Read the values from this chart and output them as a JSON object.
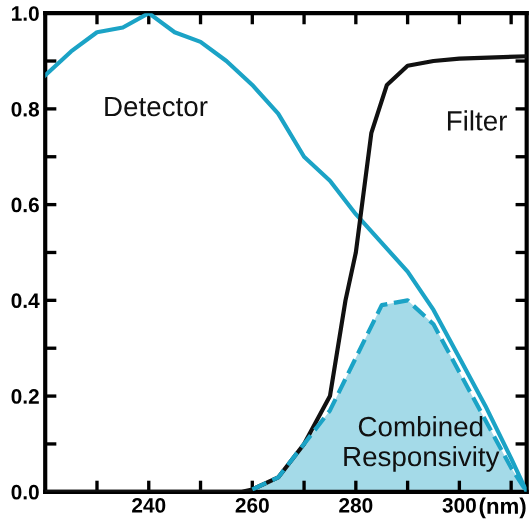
{
  "chart_data": {
    "type": "line",
    "xlabel": "(nm)",
    "xlim": [
      220,
      313
    ],
    "ylim": [
      0,
      1.0
    ],
    "xticks": [
      {
        "value": 230,
        "label": null
      },
      240,
      {
        "value": 250,
        "label": null
      },
      260,
      {
        "value": 270,
        "label": null
      },
      280,
      {
        "value": 290,
        "label": null
      },
      300,
      {
        "value": 310,
        "label": null
      }
    ],
    "yticks": [
      {
        "value": 0,
        "label": "0.0"
      },
      {
        "value": 0.1,
        "label": null
      },
      0.2,
      {
        "value": 0.3,
        "label": null
      },
      0.4,
      {
        "value": 0.5,
        "label": null
      },
      0.6,
      {
        "value": 0.7,
        "label": null
      },
      0.8,
      {
        "value": 0.9,
        "label": null
      },
      {
        "value": 1.0,
        "label": "1.0"
      }
    ],
    "grid": false,
    "legend": false,
    "marker": "none",
    "series": [
      {
        "name": "Detector",
        "color": "#1ba3c6",
        "line_style": "solid",
        "x": [
          220,
          225,
          230,
          235,
          240,
          245,
          250,
          255,
          260,
          265,
          270,
          275,
          280,
          285,
          290,
          295,
          300,
          305,
          310,
          313
        ],
        "values": [
          0.87,
          0.92,
          0.96,
          0.97,
          1.0,
          0.96,
          0.94,
          0.9,
          0.85,
          0.79,
          0.7,
          0.65,
          0.58,
          0.52,
          0.46,
          0.38,
          0.28,
          0.18,
          0.07,
          0.0
        ]
      },
      {
        "name": "Filter",
        "color": "#111111",
        "line_style": "solid",
        "x": [
          220,
          255,
          258,
          260,
          265,
          270,
          275,
          278,
          280,
          283,
          286,
          290,
          295,
          300,
          313
        ],
        "values": [
          0,
          0,
          0.0,
          0.005,
          0.03,
          0.1,
          0.2,
          0.4,
          0.5,
          0.75,
          0.85,
          0.89,
          0.9,
          0.905,
          0.91
        ]
      },
      {
        "name": "Combined\nResponsivity",
        "type": "area",
        "color": "#1ba3c6",
        "line_style": "dashed",
        "x": [
          260,
          265,
          270,
          275,
          280,
          285,
          290,
          295,
          300,
          305,
          310,
          313
        ],
        "values": [
          0.005,
          0.03,
          0.1,
          0.17,
          0.28,
          0.39,
          0.4,
          0.35,
          0.25,
          0.15,
          0.05,
          0.0
        ]
      }
    ]
  }
}
